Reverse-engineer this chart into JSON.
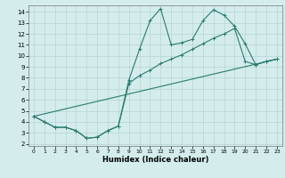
{
  "xlabel": "Humidex (Indice chaleur)",
  "xlim": [
    -0.5,
    23.5
  ],
  "ylim": [
    1.8,
    14.6
  ],
  "yticks": [
    2,
    3,
    4,
    5,
    6,
    7,
    8,
    9,
    10,
    11,
    12,
    13,
    14
  ],
  "xticks": [
    0,
    1,
    2,
    3,
    4,
    5,
    6,
    7,
    8,
    9,
    10,
    11,
    12,
    13,
    14,
    15,
    16,
    17,
    18,
    19,
    20,
    21,
    22,
    23
  ],
  "line_color": "#2a7b6f",
  "bg_color": "#d4ecec",
  "grid_color": "#b5d5d5",
  "line1_x": [
    0,
    1,
    2,
    3,
    4,
    5,
    6,
    7,
    8,
    9,
    10,
    11,
    12,
    13,
    14,
    15,
    16,
    17,
    18,
    19,
    20,
    21,
    22,
    23
  ],
  "line1_y": [
    4.5,
    4.0,
    3.5,
    3.5,
    3.2,
    2.5,
    2.6,
    3.2,
    3.6,
    7.8,
    10.6,
    13.2,
    14.3,
    11.0,
    11.2,
    11.5,
    13.2,
    14.2,
    13.7,
    12.7,
    11.1,
    9.2,
    9.5,
    9.7
  ],
  "line2_x": [
    0,
    1,
    2,
    3,
    4,
    5,
    6,
    7,
    8,
    9,
    10,
    11,
    12,
    13,
    14,
    15,
    16,
    17,
    18,
    19,
    20,
    21,
    22,
    23
  ],
  "line2_y": [
    4.5,
    4.0,
    3.5,
    3.5,
    3.2,
    2.5,
    2.6,
    3.2,
    3.6,
    7.5,
    8.2,
    8.7,
    9.3,
    9.7,
    10.1,
    10.6,
    11.1,
    11.6,
    12.0,
    12.5,
    9.5,
    9.2,
    9.5,
    9.7
  ],
  "line3_x": [
    0,
    23
  ],
  "line3_y": [
    4.5,
    9.7
  ]
}
